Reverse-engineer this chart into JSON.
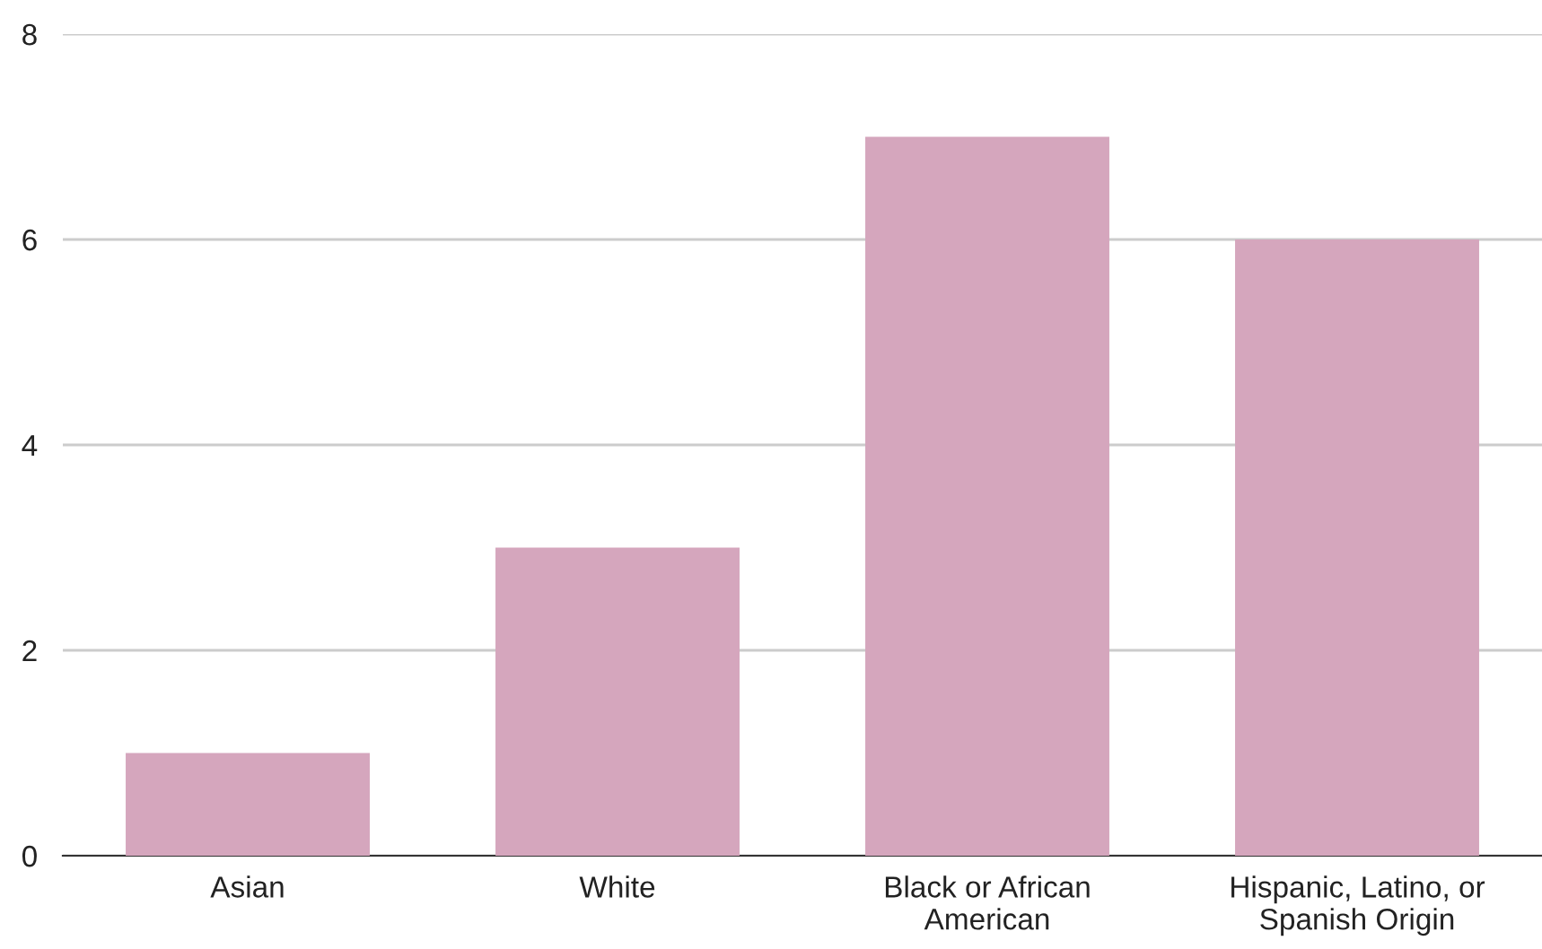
{
  "chart_data": {
    "type": "bar",
    "categories": [
      "Asian",
      "White",
      "Black or African American",
      "Hispanic, Latino, or Spanish Origin"
    ],
    "values": [
      1,
      3,
      7,
      6
    ],
    "color": "#d5a6bd",
    "ylim": [
      0,
      8
    ],
    "yticks": [
      0,
      2,
      4,
      6,
      8
    ],
    "grid": "y"
  }
}
